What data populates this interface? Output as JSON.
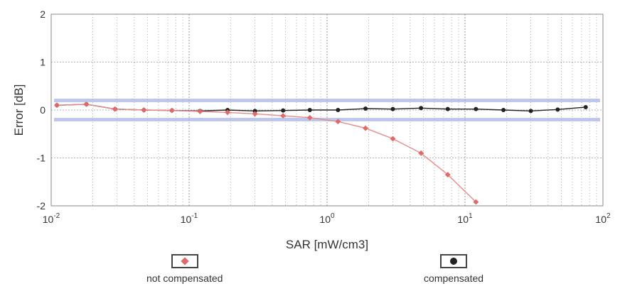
{
  "colors": {
    "not_compensated": "#e88a8a",
    "not_compensated_marker": "#e06a6a",
    "compensated": "#222222",
    "band": "#aab6e6",
    "grid": "#9a9a9a",
    "frame": "#888888"
  },
  "chart_data": {
    "type": "line",
    "xlabel": "SAR [mW/cm3]",
    "ylabel": "Error [dB]",
    "xscale": "log",
    "xlim": [
      0.01,
      100
    ],
    "ylim": [
      -2,
      2
    ],
    "grid": true,
    "x_ticks": [
      {
        "base": "10",
        "exp": "-2"
      },
      {
        "base": "10",
        "exp": "-1"
      },
      {
        "base": "10",
        "exp": "0"
      },
      {
        "base": "10",
        "exp": "1"
      },
      {
        "base": "10",
        "exp": "2"
      }
    ],
    "y_ticks": [
      "2",
      "1",
      "0",
      "-1",
      "-2"
    ],
    "band": {
      "upper": 0.2,
      "lower": -0.2
    },
    "legend": {
      "placement": "bottom",
      "entries": [
        {
          "key": "not_compensated",
          "label": "not compensated"
        },
        {
          "key": "compensated",
          "label": "compensated"
        }
      ]
    },
    "series": [
      {
        "key": "compensated",
        "name": "compensated",
        "marker": "circle",
        "x": [
          0.011,
          0.018,
          0.029,
          0.047,
          0.075,
          0.12,
          0.19,
          0.3,
          0.48,
          0.75,
          1.2,
          1.9,
          3.0,
          4.8,
          7.5,
          12,
          19,
          30,
          47,
          75
        ],
        "y": [
          0.1,
          0.12,
          0.02,
          0.0,
          -0.01,
          -0.02,
          0.0,
          -0.02,
          -0.01,
          0.0,
          0.0,
          0.03,
          0.02,
          0.04,
          0.02,
          0.02,
          0.0,
          -0.02,
          0.01,
          0.06
        ]
      },
      {
        "key": "not_compensated",
        "name": "not compensated",
        "marker": "diamond",
        "x": [
          0.011,
          0.018,
          0.029,
          0.047,
          0.075,
          0.12,
          0.19,
          0.3,
          0.48,
          0.75,
          1.2,
          1.9,
          3.0,
          4.8,
          7.5,
          12
        ],
        "y": [
          0.1,
          0.12,
          0.02,
          0.0,
          -0.01,
          -0.03,
          -0.05,
          -0.08,
          -0.12,
          -0.16,
          -0.24,
          -0.38,
          -0.6,
          -0.9,
          -1.35,
          -1.92
        ]
      }
    ]
  }
}
